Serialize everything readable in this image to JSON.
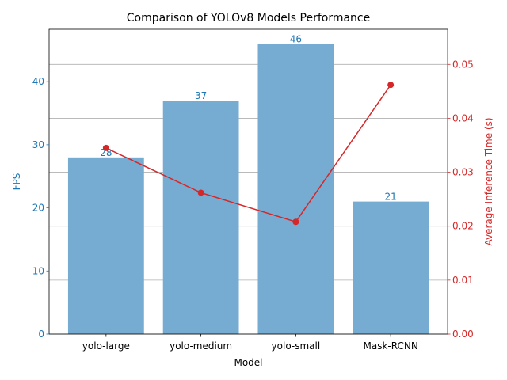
{
  "colors": {
    "bar": "#77acd2",
    "left_axis": "#1f77b4",
    "right_axis": "#d62728",
    "grid": "#b0b0b0",
    "text": "#000000"
  },
  "chart_data": {
    "type": "bar",
    "title": "Comparison of YOLOv8 Models Performance",
    "xlabel": "Model",
    "ylabel": "FPS",
    "ylabel_right": "Average Inference Time (s)",
    "categories": [
      "yolo-large",
      "yolo-medium",
      "yolo-small",
      "Mask-RCNN"
    ],
    "series": [
      {
        "type": "bar",
        "axis": "left",
        "values": [
          28,
          37,
          46,
          21
        ],
        "data_labels": [
          "28",
          "37",
          "46",
          "21"
        ]
      },
      {
        "type": "line",
        "axis": "right",
        "markers": true,
        "values": [
          0.0345,
          0.0262,
          0.0208,
          0.0462
        ]
      }
    ],
    "ylim": [
      0,
      48.3
    ],
    "yticks": [
      0,
      10,
      20,
      30,
      40
    ],
    "ytick_labels": [
      "0",
      "10",
      "20",
      "30",
      "40"
    ],
    "ylim_right": [
      0,
      0.0565
    ],
    "yticks_right": [
      0,
      0.01,
      0.02,
      0.03,
      0.04,
      0.05
    ],
    "ytick_labels_right": [
      "0.00",
      "0.01",
      "0.02",
      "0.03",
      "0.04",
      "0.05"
    ],
    "grid": "horizontal, right axis"
  }
}
